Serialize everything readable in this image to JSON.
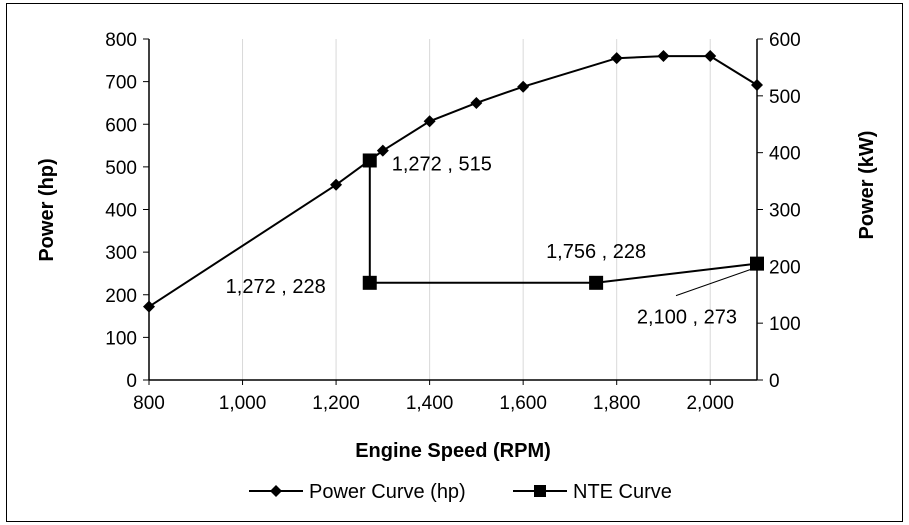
{
  "chart_data": {
    "type": "line",
    "title": "",
    "xlabel": "Engine Speed (RPM)",
    "ylabel": "Power (hp)",
    "y2label": "Power (kW)",
    "xlim": [
      800,
      2100
    ],
    "ylim": [
      0,
      800
    ],
    "y2lim": [
      0,
      600
    ],
    "x_ticks": [
      "800",
      "1,000",
      "1,200",
      "1,400",
      "1,600",
      "1,800",
      "2,000"
    ],
    "y_ticks": [
      "0",
      "100",
      "200",
      "300",
      "400",
      "500",
      "600",
      "700",
      "800"
    ],
    "y2_ticks": [
      "0",
      "100",
      "200",
      "300",
      "400",
      "500",
      "600"
    ],
    "grid": "vertical",
    "legend_position": "bottom",
    "series": [
      {
        "name": "Power Curve (hp)",
        "marker": "diamond",
        "color": "#000000",
        "x": [
          800,
          1200,
          1300,
          1400,
          1500,
          1600,
          1800,
          1900,
          2000,
          2100
        ],
        "y": [
          172,
          458,
          538,
          607,
          650,
          688,
          755,
          760,
          760,
          692
        ]
      },
      {
        "name": "NTE Curve",
        "marker": "square",
        "color": "#000000",
        "x": [
          1272,
          1272,
          1756,
          2100
        ],
        "y": [
          515,
          228,
          228,
          273
        ]
      }
    ],
    "annotations": [
      {
        "text": "1,272 , 515",
        "x": 1272,
        "y": 515
      },
      {
        "text": "1,272 , 228",
        "x": 1272,
        "y": 228
      },
      {
        "text": "1,756 , 228",
        "x": 1756,
        "y": 228
      },
      {
        "text": "2,100 , 273",
        "x": 2100,
        "y": 273
      }
    ]
  }
}
